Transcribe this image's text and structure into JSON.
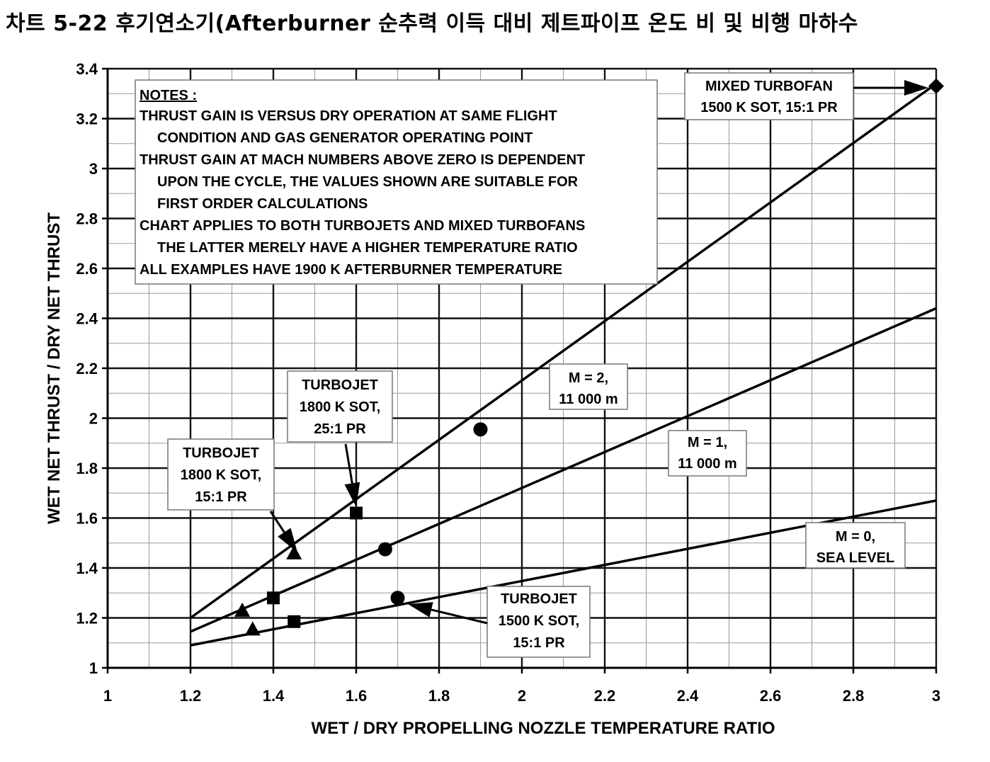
{
  "page_title": "차트 5-22 후기연소기(Afterburner 순추력 이득 대비 제트파이프 온도 비 및 비행 마하수",
  "chart_data": {
    "type": "line",
    "xlabel": "WET / DRY PROPELLING NOZZLE TEMPERATURE RATIO",
    "ylabel": "WET NET THRUST / DRY NET THRUST",
    "xlim": [
      1,
      3
    ],
    "ylim": [
      1,
      3.4
    ],
    "x_ticks": [
      1,
      1.2,
      1.4,
      1.6,
      1.8,
      2,
      2.2,
      2.4,
      2.6,
      2.8,
      3
    ],
    "x_tick_labels": [
      "1",
      "1.2",
      "1.4",
      "1.6",
      "1.8",
      "2",
      "2.2",
      "2.4",
      "2.6",
      "2.8",
      "3"
    ],
    "y_ticks": [
      1,
      1.2,
      1.4,
      1.6,
      1.8,
      2,
      2.2,
      2.4,
      2.6,
      2.8,
      3,
      3.2,
      3.4
    ],
    "y_tick_labels": [
      "1",
      "1.2",
      "1.4",
      "1.6",
      "1.8",
      "2",
      "2.2",
      "2.4",
      "2.6",
      "2.8",
      "3",
      "3.2",
      "3.4"
    ],
    "grid": true,
    "series": [
      {
        "name": "M = 2, 11 000 m",
        "x": [
          1.2,
          3.0
        ],
        "y": [
          1.2,
          3.34
        ]
      },
      {
        "name": "M = 1, 11 000 m",
        "x": [
          1.2,
          3.0
        ],
        "y": [
          1.145,
          2.44
        ]
      },
      {
        "name": "M = 0, SEA LEVEL",
        "x": [
          1.2,
          3.0
        ],
        "y": [
          1.09,
          1.67
        ]
      }
    ],
    "markers": [
      {
        "shape": "diamond",
        "x": 3.0,
        "y": 3.33
      },
      {
        "shape": "circle",
        "x": 1.9,
        "y": 1.955
      },
      {
        "shape": "square",
        "x": 1.6,
        "y": 1.62
      },
      {
        "shape": "triangle",
        "x": 1.45,
        "y": 1.46
      },
      {
        "shape": "circle",
        "x": 1.67,
        "y": 1.475
      },
      {
        "shape": "square",
        "x": 1.4,
        "y": 1.28
      },
      {
        "shape": "triangle",
        "x": 1.325,
        "y": 1.23
      },
      {
        "shape": "circle",
        "x": 1.7,
        "y": 1.28
      },
      {
        "shape": "square",
        "x": 1.45,
        "y": 1.185
      },
      {
        "shape": "triangle",
        "x": 1.35,
        "y": 1.155
      }
    ],
    "notes": {
      "heading": "NOTES :",
      "lines": [
        "THRUST GAIN IS VERSUS DRY OPERATION AT SAME FLIGHT",
        "CONDITION AND GAS GENERATOR OPERATING POINT",
        "THRUST GAIN AT MACH NUMBERS ABOVE ZERO IS DEPENDENT",
        "UPON THE CYCLE, THE VALUES SHOWN ARE SUITABLE FOR",
        "FIRST ORDER CALCULATIONS",
        "CHART APPLIES TO BOTH TURBOJETS AND MIXED TURBOFANS",
        "THE LATTER MERELY HAVE A HIGHER TEMPERATURE RATIO",
        "ALL EXAMPLES HAVE 1900 K AFTERBURNER TEMPERATURE"
      ]
    },
    "annotations": [
      {
        "lines": [
          "MIXED TURBOFAN",
          "1500 K SOT, 15:1 PR"
        ]
      },
      {
        "lines": [
          "M = 2,",
          "11 000 m"
        ]
      },
      {
        "lines": [
          "M = 1,",
          "11 000 m"
        ]
      },
      {
        "lines": [
          "M = 0,",
          "SEA LEVEL"
        ]
      },
      {
        "lines": [
          "TURBOJET",
          "1800 K SOT,",
          "25:1 PR"
        ]
      },
      {
        "lines": [
          "TURBOJET",
          "1800 K SOT,",
          "15:1 PR"
        ]
      },
      {
        "lines": [
          "TURBOJET",
          "1500 K SOT,",
          "15:1 PR"
        ]
      }
    ]
  }
}
